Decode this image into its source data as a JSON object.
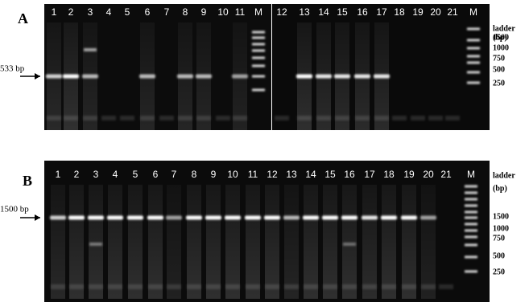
{
  "panels": [
    {
      "label": "A",
      "size_marker": "533 bp",
      "lanes": [
        "1",
        "2",
        "3",
        "4",
        "5",
        "6",
        "7",
        "8",
        "9",
        "10",
        "11",
        "M",
        "12",
        "13",
        "14",
        "15",
        "16",
        "17",
        "18",
        "19",
        "20",
        "21",
        "M"
      ],
      "ladder_title": "ladder",
      "ladder_unit": "(bp)",
      "ladder_sizes": [
        "1500",
        "1000",
        "750",
        "500",
        "250"
      ]
    },
    {
      "label": "B",
      "size_marker": "1500 bp",
      "lanes": [
        "1",
        "2",
        "3",
        "4",
        "5",
        "6",
        "7",
        "8",
        "9",
        "10",
        "11",
        "12",
        "13",
        "14",
        "15",
        "16",
        "17",
        "18",
        "19",
        "20",
        "21",
        "M"
      ],
      "ladder_title": "ladder",
      "ladder_unit": "(bp)",
      "ladder_sizes": [
        "1500",
        "1000",
        "750",
        "500",
        "250"
      ]
    }
  ]
}
